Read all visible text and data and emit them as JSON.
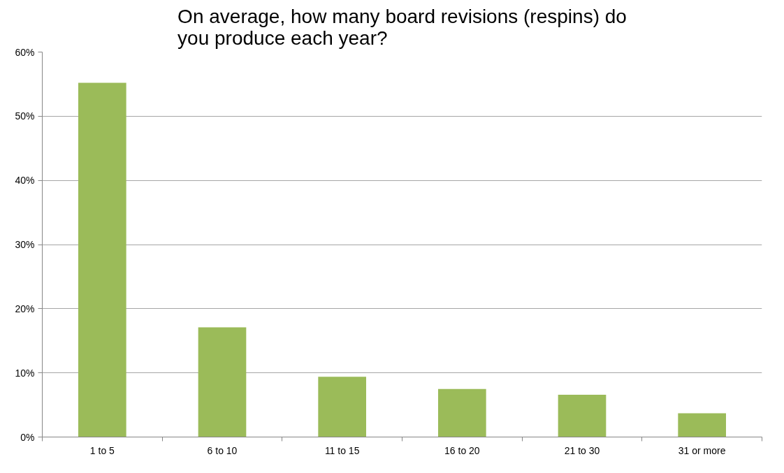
{
  "chart_data": {
    "type": "bar",
    "title": "On average, how many board revisions (respins) do you produce each year?",
    "categories": [
      "1 to 5",
      "6 to 10",
      "11 to 15",
      "16 to 20",
      "21 to 30",
      "31 or more"
    ],
    "values": [
      55.2,
      17.1,
      9.4,
      7.5,
      6.6,
      3.7
    ],
    "color": "#9bbb59",
    "ylim": [
      0,
      60
    ],
    "yticks": [
      {
        "value": 0,
        "label": "0%"
      },
      {
        "value": 10,
        "label": "10%"
      },
      {
        "value": 20,
        "label": "20%"
      },
      {
        "value": 30,
        "label": "30%"
      },
      {
        "value": 40,
        "label": "40%"
      },
      {
        "value": 50,
        "label": "50%"
      },
      {
        "value": 60,
        "label": "60%"
      }
    ],
    "grid": "y"
  }
}
